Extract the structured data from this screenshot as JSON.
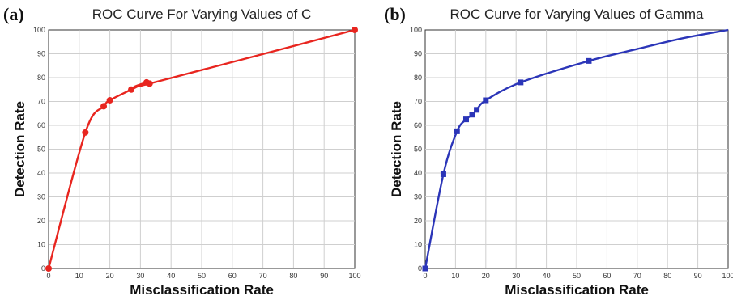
{
  "chart_data": [
    {
      "type": "line",
      "panel_label": "(a)",
      "title": "ROC Curve For Varying Values of C",
      "xlabel": "Misclassification Rate",
      "ylabel": "Detection Rate",
      "xlim": [
        0,
        100
      ],
      "ylim": [
        0,
        100
      ],
      "xticks": [
        0,
        10,
        20,
        30,
        40,
        50,
        60,
        70,
        80,
        90,
        100
      ],
      "yticks": [
        0,
        10,
        20,
        30,
        40,
        50,
        60,
        70,
        80,
        90,
        100
      ],
      "grid": true,
      "marker": "circle",
      "color": "#e8251f",
      "series": [
        {
          "x": [
            0,
            12,
            18,
            20,
            27,
            32,
            33,
            100
          ],
          "y": [
            0,
            57,
            68,
            70.5,
            75,
            78,
            77.5,
            100
          ]
        }
      ]
    },
    {
      "type": "line",
      "panel_label": "(b)",
      "title": "ROC Curve for Varying Values of Gamma",
      "xlabel": "Misclassification Rate",
      "ylabel": "Detection Rate",
      "xlim": [
        0,
        100
      ],
      "ylim": [
        0,
        100
      ],
      "xticks": [
        0,
        10,
        20,
        30,
        40,
        50,
        60,
        70,
        80,
        90,
        100
      ],
      "yticks": [
        0,
        10,
        20,
        30,
        40,
        50,
        60,
        70,
        80,
        90,
        100
      ],
      "grid": true,
      "marker": "square",
      "color": "#2b35b8",
      "series": [
        {
          "x": [
            0,
            6,
            10.5,
            13.5,
            15.5,
            17,
            20,
            31.5,
            54
          ],
          "y": [
            0,
            39.5,
            57.5,
            62.5,
            64.5,
            66.5,
            70.5,
            78,
            87
          ]
        }
      ],
      "curve_extension": {
        "x": [
          54,
          70,
          85,
          100
        ],
        "y": [
          87,
          92,
          96.5,
          100
        ]
      }
    }
  ]
}
